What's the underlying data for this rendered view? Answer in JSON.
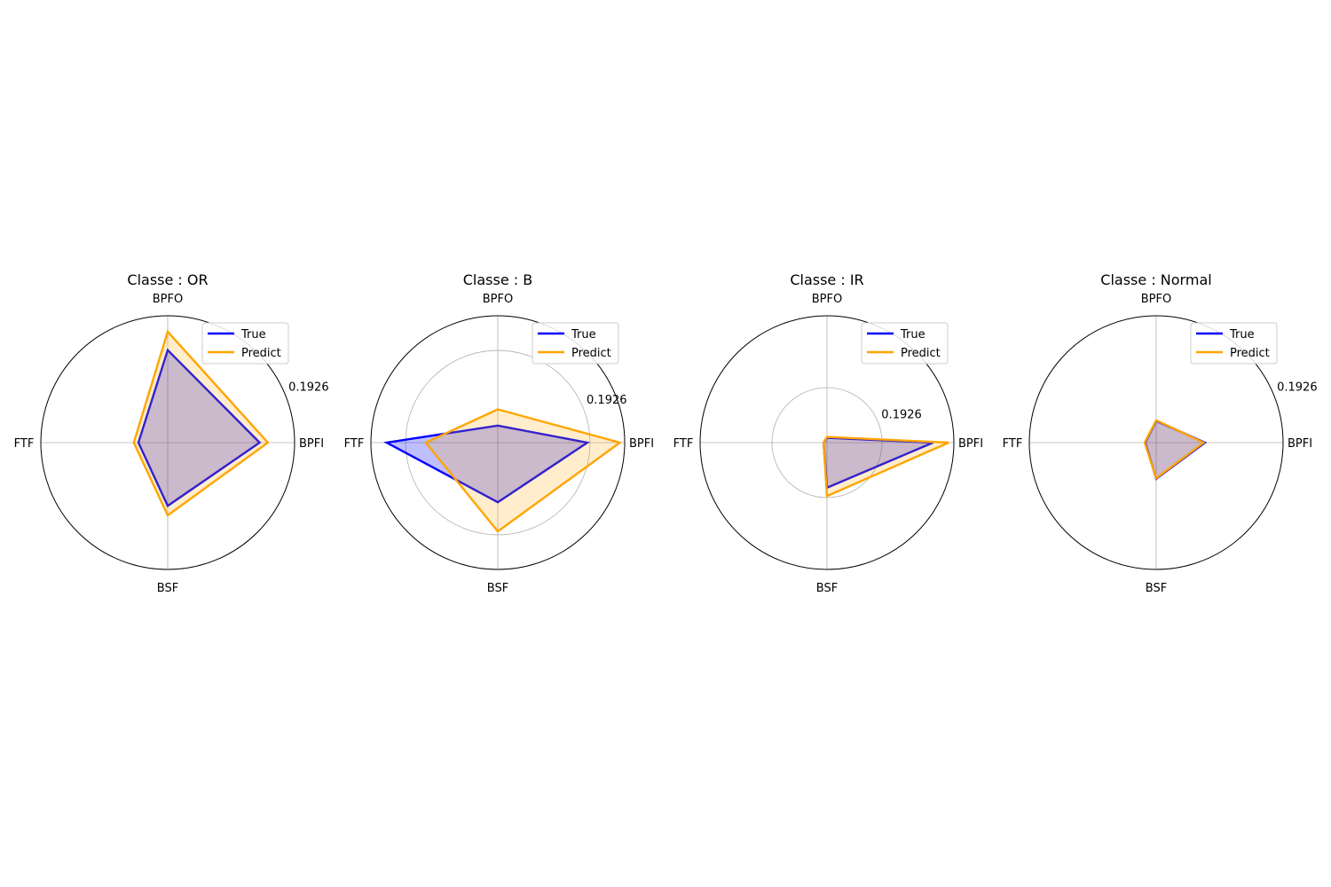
{
  "legend": {
    "true_label": "True",
    "predict_label": "Predict"
  },
  "colors": {
    "true": "#0000ff",
    "predict": "#ffa500",
    "true_fill": "#0000ff",
    "predict_fill": "#ffa500",
    "grid": "#b0b0b0"
  },
  "chart_data": [
    {
      "type": "radar",
      "title": "Classe : OR",
      "axes": [
        "BPFI",
        "BPFO",
        "FTF",
        "BSF"
      ],
      "rmax": 0.1926,
      "rticks": [
        0.1926
      ],
      "rtick_labels": [
        "0.1926"
      ],
      "series": [
        {
          "name": "True",
          "values": [
            0.1395,
            0.1405,
            0.0445,
            0.096
          ]
        },
        {
          "name": "Predict",
          "values": [
            0.152,
            0.1685,
            0.0515,
            0.1105
          ]
        }
      ]
    },
    {
      "type": "radar",
      "title": "Classe : B",
      "axes": [
        "BPFI",
        "BPFO",
        "FTF",
        "BSF"
      ],
      "rmax": 0.265,
      "rticks": [
        0.1926
      ],
      "rtick_labels": [
        "0.1926"
      ],
      "series": [
        {
          "name": "True",
          "values": [
            0.187,
            0.0355,
            0.232,
            0.1245
          ]
        },
        {
          "name": "Predict",
          "values": [
            0.255,
            0.0695,
            0.1505,
            0.1855
          ]
        }
      ]
    },
    {
      "type": "radar",
      "title": "Classe : IR",
      "axes": [
        "BPFI",
        "BPFO",
        "FTF",
        "BSF"
      ],
      "rmax": 0.444,
      "rticks": [
        0.1926
      ],
      "rtick_labels": [
        "0.1926"
      ],
      "series": [
        {
          "name": "True",
          "values": [
            0.371,
            0.017,
            0.012,
            0.158
          ]
        },
        {
          "name": "Predict",
          "values": [
            0.426,
            0.02,
            0.012,
            0.187
          ]
        }
      ]
    },
    {
      "type": "radar",
      "title": "Classe : Normal",
      "axes": [
        "BPFI",
        "BPFO",
        "FTF",
        "BSF"
      ],
      "rmax": 0.1926,
      "rticks": [
        0.1926
      ],
      "rtick_labels": [
        "0.1926"
      ],
      "series": [
        {
          "name": "True",
          "values": [
            0.074,
            0.033,
            0.0165,
            0.055
          ]
        },
        {
          "name": "Predict",
          "values": [
            0.072,
            0.034,
            0.0175,
            0.054
          ]
        }
      ]
    }
  ]
}
